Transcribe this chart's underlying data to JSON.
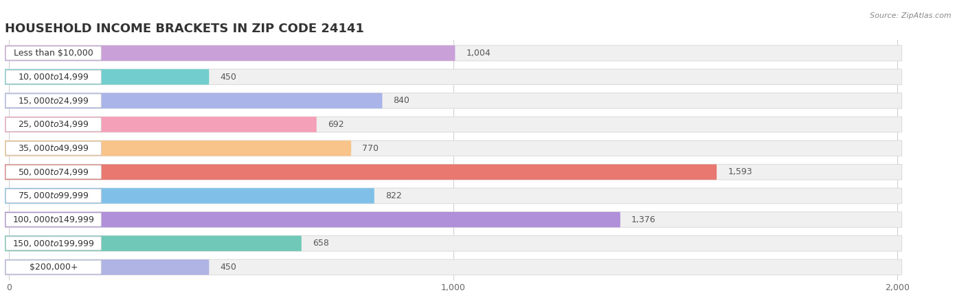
{
  "title": "HOUSEHOLD INCOME BRACKETS IN ZIP CODE 24141",
  "source": "Source: ZipAtlas.com",
  "categories": [
    "Less than $10,000",
    "$10,000 to $14,999",
    "$15,000 to $24,999",
    "$25,000 to $34,999",
    "$35,000 to $49,999",
    "$50,000 to $74,999",
    "$75,000 to $99,999",
    "$100,000 to $149,999",
    "$150,000 to $199,999",
    "$200,000+"
  ],
  "values": [
    1004,
    450,
    840,
    692,
    770,
    1593,
    822,
    1376,
    658,
    450
  ],
  "bar_colors": [
    "#c9a0d8",
    "#72cece",
    "#aab4e8",
    "#f4a0b8",
    "#f8c48a",
    "#e87870",
    "#80c0e8",
    "#b090d8",
    "#70c8b8",
    "#b0b4e4"
  ],
  "background_color": "#ffffff",
  "row_bg_color": "#f0f0f0",
  "xlim_data": 2000,
  "title_fontsize": 13,
  "label_fontsize": 9,
  "value_fontsize": 9
}
